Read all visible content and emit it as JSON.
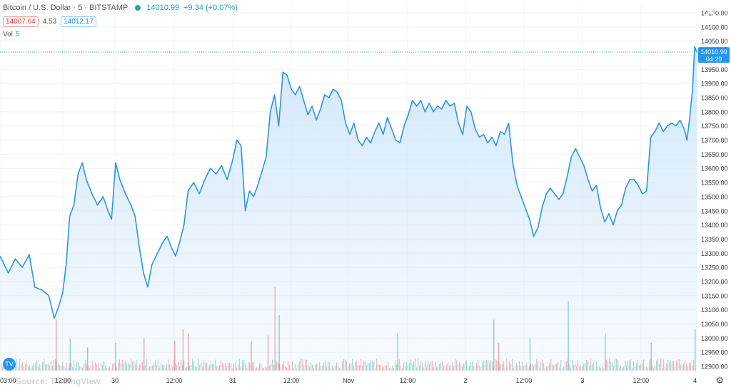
{
  "header": {
    "symbol": "Bitcoin / U.S. Dollar · 5 · BITSTAMP",
    "last_price": "14010.99",
    "change": "+9.34 (+0.07%)"
  },
  "quote": {
    "bid": "14007.64",
    "spread": "4.53",
    "ask": "14012.17"
  },
  "volume": {
    "label": "Vol",
    "value": "5"
  },
  "price_label": {
    "value": "14010.99",
    "countdown": "04:29"
  },
  "watermark": "Source: TradingView",
  "logo": "TV",
  "icons": {
    "settings": "gear-icon",
    "close": "close-icon",
    "logo": "tradingview-logo-icon"
  },
  "colors": {
    "line": "#2f95e0",
    "fill": "#cde5fa",
    "up": "#26a69a",
    "down": "#ef5350",
    "grid": "#f0f3fa",
    "price_tag": "#2196f3"
  },
  "chart_data": {
    "type": "area",
    "y_ticks": [
      "14150.00",
      "14100.00",
      "14050.00",
      "14000.00",
      "13950.00",
      "13900.00",
      "13850.00",
      "13800.00",
      "13750.00",
      "13700.00",
      "13650.00",
      "13600.00",
      "13550.00",
      "13500.00",
      "13450.00",
      "13400.00",
      "13350.00",
      "13300.00",
      "13250.00",
      "13200.00",
      "13150.00",
      "13100.00",
      "13050.00",
      "13000.00",
      "12950.00",
      "12900.00"
    ],
    "x_ticks": [
      "03:00",
      "12:00",
      "30",
      "12:00",
      "31",
      "12:00",
      "Nov",
      "12:00",
      "2",
      "12:00",
      "3",
      "12:00",
      "4"
    ],
    "x_tick_positions": [
      0.0,
      0.09,
      0.165,
      0.25,
      0.334,
      0.418,
      0.5,
      0.585,
      0.668,
      0.752,
      0.836,
      0.92,
      1.0
    ],
    "ylim": [
      12885,
      14175
    ],
    "last": 14010.99,
    "grid": true,
    "points": [
      [
        0.0,
        13290
      ],
      [
        0.012,
        13230
      ],
      [
        0.022,
        13280
      ],
      [
        0.032,
        13250
      ],
      [
        0.042,
        13295
      ],
      [
        0.05,
        13180
      ],
      [
        0.06,
        13170
      ],
      [
        0.07,
        13150
      ],
      [
        0.078,
        13070
      ],
      [
        0.084,
        13110
      ],
      [
        0.09,
        13160
      ],
      [
        0.095,
        13260
      ],
      [
        0.1,
        13430
      ],
      [
        0.106,
        13470
      ],
      [
        0.112,
        13580
      ],
      [
        0.118,
        13620
      ],
      [
        0.124,
        13560
      ],
      [
        0.132,
        13510
      ],
      [
        0.14,
        13470
      ],
      [
        0.148,
        13500
      ],
      [
        0.155,
        13450
      ],
      [
        0.16,
        13420
      ],
      [
        0.166,
        13620
      ],
      [
        0.172,
        13560
      ],
      [
        0.18,
        13510
      ],
      [
        0.188,
        13470
      ],
      [
        0.194,
        13430
      ],
      [
        0.2,
        13320
      ],
      [
        0.206,
        13230
      ],
      [
        0.212,
        13180
      ],
      [
        0.218,
        13260
      ],
      [
        0.226,
        13300
      ],
      [
        0.234,
        13340
      ],
      [
        0.24,
        13360
      ],
      [
        0.246,
        13320
      ],
      [
        0.252,
        13290
      ],
      [
        0.258,
        13340
      ],
      [
        0.264,
        13400
      ],
      [
        0.27,
        13520
      ],
      [
        0.278,
        13550
      ],
      [
        0.286,
        13510
      ],
      [
        0.294,
        13560
      ],
      [
        0.302,
        13600
      ],
      [
        0.31,
        13580
      ],
      [
        0.318,
        13610
      ],
      [
        0.326,
        13560
      ],
      [
        0.334,
        13630
      ],
      [
        0.34,
        13700
      ],
      [
        0.346,
        13680
      ],
      [
        0.352,
        13450
      ],
      [
        0.358,
        13520
      ],
      [
        0.364,
        13500
      ],
      [
        0.37,
        13540
      ],
      [
        0.376,
        13590
      ],
      [
        0.382,
        13640
      ],
      [
        0.388,
        13800
      ],
      [
        0.394,
        13860
      ],
      [
        0.4,
        13750
      ],
      [
        0.406,
        13940
      ],
      [
        0.412,
        13930
      ],
      [
        0.418,
        13880
      ],
      [
        0.424,
        13860
      ],
      [
        0.43,
        13890
      ],
      [
        0.436,
        13840
      ],
      [
        0.442,
        13790
      ],
      [
        0.448,
        13820
      ],
      [
        0.454,
        13770
      ],
      [
        0.46,
        13810
      ],
      [
        0.466,
        13860
      ],
      [
        0.472,
        13850
      ],
      [
        0.478,
        13880
      ],
      [
        0.484,
        13870
      ],
      [
        0.49,
        13840
      ],
      [
        0.496,
        13760
      ],
      [
        0.502,
        13720
      ],
      [
        0.508,
        13760
      ],
      [
        0.514,
        13700
      ],
      [
        0.52,
        13680
      ],
      [
        0.526,
        13710
      ],
      [
        0.532,
        13690
      ],
      [
        0.538,
        13730
      ],
      [
        0.544,
        13760
      ],
      [
        0.55,
        13720
      ],
      [
        0.556,
        13780
      ],
      [
        0.562,
        13740
      ],
      [
        0.568,
        13700
      ],
      [
        0.574,
        13690
      ],
      [
        0.58,
        13750
      ],
      [
        0.586,
        13790
      ],
      [
        0.592,
        13840
      ],
      [
        0.598,
        13820
      ],
      [
        0.604,
        13840
      ],
      [
        0.61,
        13800
      ],
      [
        0.616,
        13830
      ],
      [
        0.622,
        13800
      ],
      [
        0.628,
        13820
      ],
      [
        0.634,
        13810
      ],
      [
        0.64,
        13840
      ],
      [
        0.646,
        13820
      ],
      [
        0.652,
        13830
      ],
      [
        0.658,
        13760
      ],
      [
        0.664,
        13720
      ],
      [
        0.67,
        13820
      ],
      [
        0.676,
        13800
      ],
      [
        0.682,
        13740
      ],
      [
        0.688,
        13710
      ],
      [
        0.694,
        13720
      ],
      [
        0.7,
        13690
      ],
      [
        0.706,
        13710
      ],
      [
        0.712,
        13680
      ],
      [
        0.718,
        13730
      ],
      [
        0.724,
        13720
      ],
      [
        0.73,
        13760
      ],
      [
        0.736,
        13620
      ],
      [
        0.742,
        13540
      ],
      [
        0.748,
        13500
      ],
      [
        0.754,
        13460
      ],
      [
        0.76,
        13420
      ],
      [
        0.766,
        13360
      ],
      [
        0.772,
        13390
      ],
      [
        0.778,
        13460
      ],
      [
        0.784,
        13510
      ],
      [
        0.79,
        13530
      ],
      [
        0.796,
        13510
      ],
      [
        0.802,
        13490
      ],
      [
        0.808,
        13510
      ],
      [
        0.814,
        13570
      ],
      [
        0.82,
        13640
      ],
      [
        0.826,
        13670
      ],
      [
        0.832,
        13640
      ],
      [
        0.838,
        13610
      ],
      [
        0.844,
        13560
      ],
      [
        0.85,
        13520
      ],
      [
        0.856,
        13540
      ],
      [
        0.862,
        13460
      ],
      [
        0.868,
        13410
      ],
      [
        0.874,
        13440
      ],
      [
        0.88,
        13400
      ],
      [
        0.886,
        13450
      ],
      [
        0.892,
        13470
      ],
      [
        0.898,
        13530
      ],
      [
        0.904,
        13560
      ],
      [
        0.91,
        13560
      ],
      [
        0.916,
        13540
      ],
      [
        0.922,
        13510
      ],
      [
        0.928,
        13520
      ],
      [
        0.934,
        13710
      ],
      [
        0.94,
        13730
      ],
      [
        0.946,
        13760
      ],
      [
        0.952,
        13730
      ],
      [
        0.958,
        13750
      ],
      [
        0.964,
        13760
      ],
      [
        0.97,
        13750
      ],
      [
        0.976,
        13770
      ],
      [
        0.982,
        13740
      ],
      [
        0.986,
        13700
      ],
      [
        0.99,
        13780
      ],
      [
        0.994,
        13880
      ],
      [
        0.997,
        14030
      ],
      [
        1.0,
        14011
      ]
    ],
    "volume_spikes": [
      [
        0.08,
        0.55
      ],
      [
        0.1,
        0.35
      ],
      [
        0.125,
        0.25
      ],
      [
        0.165,
        0.3
      ],
      [
        0.206,
        0.35
      ],
      [
        0.25,
        0.32
      ],
      [
        0.262,
        0.45
      ],
      [
        0.27,
        0.4
      ],
      [
        0.36,
        0.32
      ],
      [
        0.384,
        0.38
      ],
      [
        0.394,
        0.9
      ],
      [
        0.4,
        0.6
      ],
      [
        0.57,
        0.4
      ],
      [
        0.708,
        0.55
      ],
      [
        0.715,
        0.3
      ],
      [
        0.76,
        0.35
      ],
      [
        0.815,
        0.75
      ],
      [
        0.868,
        0.4
      ],
      [
        0.934,
        0.3
      ],
      [
        0.997,
        0.45
      ]
    ]
  }
}
